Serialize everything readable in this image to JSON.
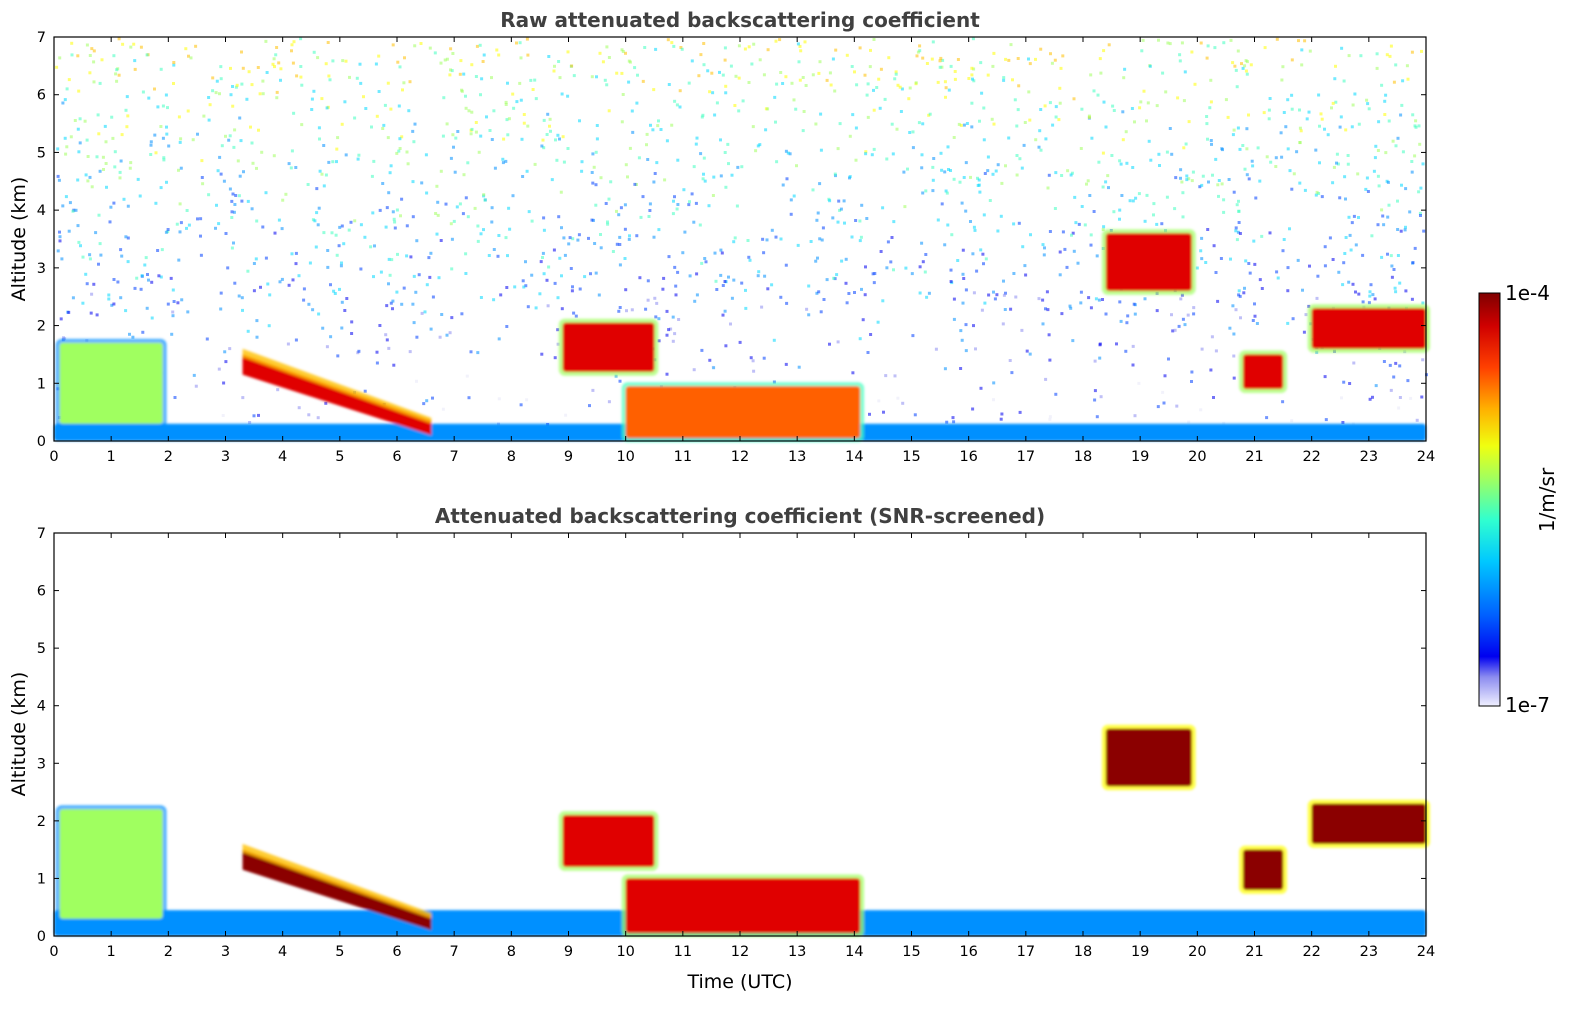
{
  "chart_data": [
    {
      "type": "heatmap",
      "title": "Raw attenuated backscattering coefficient",
      "xlabel": "",
      "ylabel": "Altitude (km)",
      "xlim": [
        0,
        24
      ],
      "ylim": [
        0,
        7
      ],
      "xticks": [
        "0",
        "1",
        "2",
        "3",
        "4",
        "5",
        "6",
        "7",
        "8",
        "9",
        "10",
        "11",
        "12",
        "13",
        "14",
        "15",
        "16",
        "17",
        "18",
        "19",
        "20",
        "21",
        "22",
        "23",
        "24"
      ],
      "yticks": [
        "0",
        "1",
        "2",
        "3",
        "4",
        "5",
        "6",
        "7"
      ],
      "features": [
        {
          "name": "boundary layer (surface)",
          "t_start": 0,
          "t_end": 24,
          "alt_bottom": 0.0,
          "alt_top": 0.3,
          "level": 0.3
        },
        {
          "name": "aerosol plume",
          "t_start": 0.1,
          "t_end": 1.9,
          "alt_bottom": 0.3,
          "alt_top": 1.7,
          "level": 0.55
        },
        {
          "name": "descending layer",
          "t_start": 3.3,
          "t_end": 6.6,
          "alt_top_start": 1.5,
          "alt_top_end": 0.35,
          "level": 0.95
        },
        {
          "name": "cloud 9-10.5 h",
          "t_start": 8.9,
          "t_end": 10.5,
          "alt_bottom": 1.2,
          "alt_top": 2.05,
          "level": 0.9
        },
        {
          "name": "dense layer 11-14 h",
          "t_start": 10.0,
          "t_end": 14.1,
          "alt_bottom": 0.05,
          "alt_top": 0.95,
          "level": 0.85
        },
        {
          "name": "clouds 18.5-20 h",
          "t_start": 18.4,
          "t_end": 19.9,
          "alt_bottom": 2.6,
          "alt_top": 3.6,
          "level": 0.95
        },
        {
          "name": "cloud 21 h",
          "t_start": 20.8,
          "t_end": 21.5,
          "alt_bottom": 0.9,
          "alt_top": 1.5,
          "level": 0.92
        },
        {
          "name": "cloud 22-24 h",
          "t_start": 22.0,
          "t_end": 24.0,
          "alt_bottom": 1.6,
          "alt_top": 2.3,
          "level": 0.95
        }
      ]
    },
    {
      "type": "heatmap",
      "title": "Attenuated backscattering coefficient (SNR-screened)",
      "xlabel": "Time (UTC)",
      "ylabel": "Altitude (km)",
      "xlim": [
        0,
        24
      ],
      "ylim": [
        0,
        7
      ],
      "xticks": [
        "0",
        "1",
        "2",
        "3",
        "4",
        "5",
        "6",
        "7",
        "8",
        "9",
        "10",
        "11",
        "12",
        "13",
        "14",
        "15",
        "16",
        "17",
        "18",
        "19",
        "20",
        "21",
        "22",
        "23",
        "24"
      ],
      "yticks": [
        "0",
        "1",
        "2",
        "3",
        "4",
        "5",
        "6",
        "7"
      ],
      "features": [
        {
          "name": "boundary layer (surface)",
          "t_start": 0,
          "t_end": 24,
          "alt_bottom": 0.0,
          "alt_top": 0.45,
          "level": 0.3
        },
        {
          "name": "aerosol plume",
          "t_start": 0.1,
          "t_end": 1.9,
          "alt_bottom": 0.3,
          "alt_top": 2.2,
          "level": 0.55
        },
        {
          "name": "descending layer",
          "t_start": 3.3,
          "t_end": 6.6,
          "alt_top_start": 1.5,
          "alt_top_end": 0.35,
          "level": 1.0
        },
        {
          "name": "cloud 9-10.5 h",
          "t_start": 8.9,
          "t_end": 10.5,
          "alt_bottom": 1.2,
          "alt_top": 2.1,
          "level": 0.9
        },
        {
          "name": "dense layer 11-14 h",
          "t_start": 10.0,
          "t_end": 14.1,
          "alt_bottom": 0.05,
          "alt_top": 1.0,
          "level": 0.9
        },
        {
          "name": "clouds 18.5-20 h",
          "t_start": 18.4,
          "t_end": 19.9,
          "alt_bottom": 2.6,
          "alt_top": 3.6,
          "level": 1.0
        },
        {
          "name": "cloud 21 h",
          "t_start": 20.8,
          "t_end": 21.5,
          "alt_bottom": 0.8,
          "alt_top": 1.5,
          "level": 1.0
        },
        {
          "name": "cloud 22-24 h",
          "t_start": 22.0,
          "t_end": 24.0,
          "alt_bottom": 1.6,
          "alt_top": 2.3,
          "level": 1.0
        }
      ]
    }
  ],
  "colorbar": {
    "label": "1/m/sr",
    "max_label": "1e-4",
    "min_label": "1e-7",
    "scale": "log",
    "colormap": [
      "#e8e8f8",
      "#8c8cf0",
      "#0000f0",
      "#0040ff",
      "#0090ff",
      "#00d8ff",
      "#40ffc0",
      "#a0ff60",
      "#ffff00",
      "#ffc000",
      "#ff6000",
      "#e00000",
      "#8b0000"
    ]
  }
}
